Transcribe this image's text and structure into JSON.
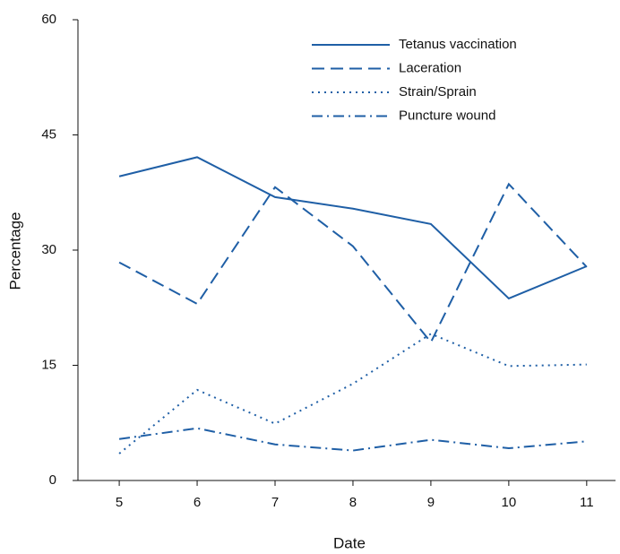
{
  "chart_data": {
    "type": "line",
    "x_label": "Date",
    "y_label": "Percentage",
    "x": [
      5,
      6,
      7,
      8,
      9,
      10,
      11
    ],
    "series": [
      {
        "name": "Tetanus vaccination",
        "color": "#1f5fa6",
        "dash": "solid",
        "values": [
          39.6,
          42.1,
          36.9,
          35.4,
          33.4,
          23.7,
          27.9
        ]
      },
      {
        "name": "Laceration",
        "color": "#1f5fa6",
        "dash": "dashed",
        "values": [
          28.4,
          23.0,
          38.2,
          30.5,
          18.0,
          38.6,
          27.8
        ]
      },
      {
        "name": "Strain/Sprain",
        "color": "#1f5fa6",
        "dash": "dotted",
        "values": [
          3.5,
          11.8,
          7.4,
          12.6,
          19.1,
          14.9,
          15.1
        ]
      },
      {
        "name": "Puncture wound",
        "color": "#1f5fa6",
        "dash": "dashdot",
        "values": [
          5.4,
          6.8,
          4.7,
          3.9,
          5.3,
          4.2,
          5.1
        ]
      }
    ],
    "xlim": [
      4.47,
      11.37
    ],
    "xticks": [
      5,
      6,
      7,
      8,
      9,
      10,
      11
    ],
    "ylim": [
      0,
      60
    ],
    "yticks": [
      0,
      15,
      30,
      45,
      60
    ],
    "legend": "top-right"
  }
}
